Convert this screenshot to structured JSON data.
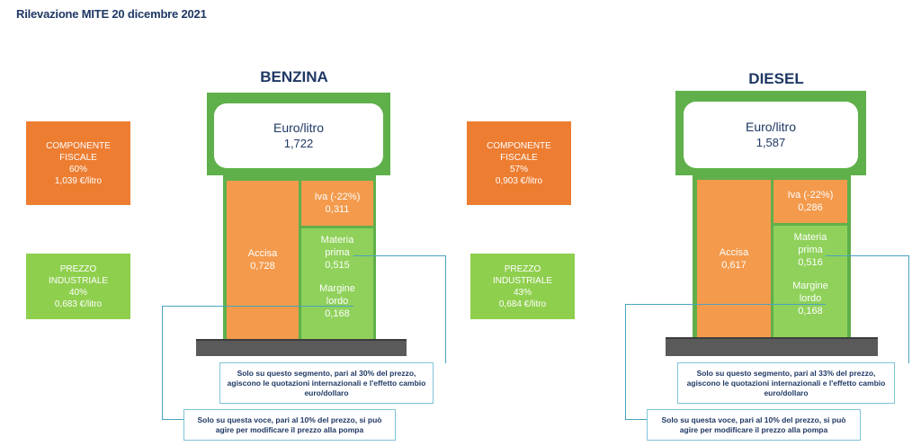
{
  "header": "Rilevazione MITE 20 dicembre 2021",
  "benzina": {
    "title": "BENZINA",
    "fiscal": {
      "label": "COMPONENTE FISCALE",
      "percent": "60%",
      "value": "1,039 €/litro"
    },
    "industrial": {
      "label": "PREZZO INDUSTRIALE",
      "percent": "40%",
      "value": "0,683 €/litro"
    },
    "display": {
      "unit": "Euro/litro",
      "price": "1,722"
    },
    "accisa": {
      "label": "Accisa",
      "value": "0,728"
    },
    "iva": {
      "label": "Iva (-22%)",
      "value": "0,311"
    },
    "materia": {
      "label1": "Materia",
      "label2": "prima",
      "value": "0,515"
    },
    "margine": {
      "label1": "Margine",
      "label2": "lordo",
      "value": "0,168"
    },
    "note_segment": {
      "line1": "Solo su questo segmento, pari al 30% del prezzo,",
      "line2": "agiscono le quotazioni internazionali e l'effetto cambio",
      "line3": "euro/dollaro"
    },
    "note_voice": {
      "line1": "Solo su questa voce, pari al 10% del prezzo, si può",
      "line2": "agire per modificare il prezzo alla pompa"
    }
  },
  "diesel": {
    "title": "DIESEL",
    "fiscal": {
      "label": "COMPONENTE FISCALE",
      "percent": "57%",
      "value": "0,903 €/litro"
    },
    "industrial": {
      "label": "PREZZO INDUSTRIALE",
      "percent": "43%",
      "value": "0,684 €/litro"
    },
    "display": {
      "unit": "Euro/litro",
      "price": "1,587"
    },
    "accisa": {
      "label": "Accisa",
      "value": "0,617"
    },
    "iva": {
      "label": "Iva (-22%)",
      "value": "0,286"
    },
    "materia": {
      "label1": "Materia",
      "label2": "prima",
      "value": "0,516"
    },
    "margine": {
      "label1": "Margine",
      "label2": "lordo",
      "value": "0,168"
    },
    "note_segment": {
      "line1": "Solo su questo segmento, pari al 33% del prezzo,",
      "line2": "agiscono le quotazioni internazionali e l'effetto cambio",
      "line3": "euro/dollaro"
    },
    "note_voice": {
      "line1": "Solo su questa voce, pari al 10% del prezzo, si può",
      "line2": "agire per modificare il prezzo alla pompa"
    }
  }
}
